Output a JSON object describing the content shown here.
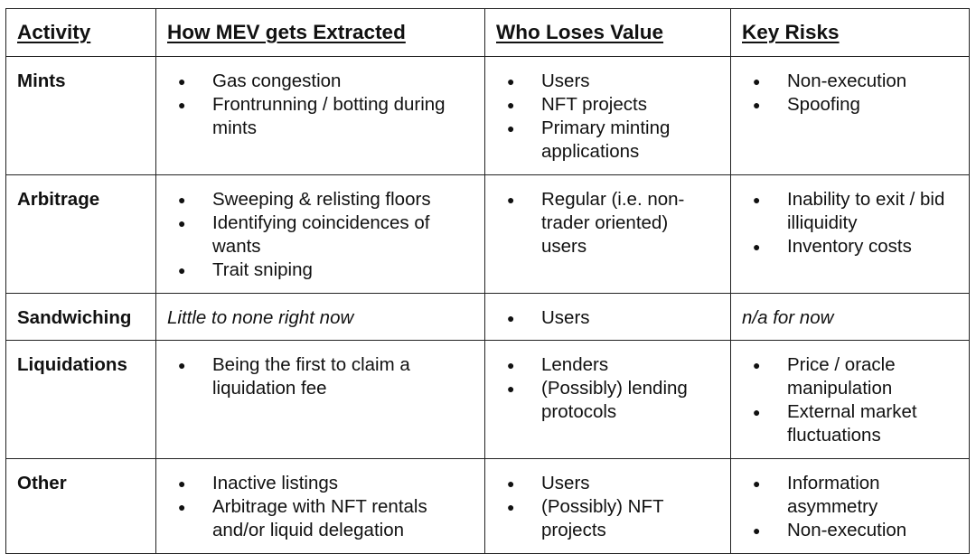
{
  "headers": [
    "Activity",
    "How MEV gets Extracted",
    "Who Loses Value",
    "Key Risks"
  ],
  "rows": [
    {
      "activity": "Mints",
      "how": [
        "Gas congestion",
        "Frontrunning / botting during mints"
      ],
      "who": [
        "Users",
        "NFT projects",
        "Primary minting applications"
      ],
      "risks": [
        "Non-execution",
        "Spoofing"
      ]
    },
    {
      "activity": "Arbitrage",
      "how": [
        "Sweeping & relisting floors",
        "Identifying coincidences of wants",
        "Trait sniping"
      ],
      "who": [
        "Regular (i.e. non-trader oriented) users"
      ],
      "risks": [
        "Inability to exit / bid illiquidity",
        "Inventory costs"
      ]
    },
    {
      "activity": "Sandwiching",
      "how_note": "Little to none right now",
      "who": [
        "Users"
      ],
      "risks_note": "n/a for now"
    },
    {
      "activity": "Liquidations",
      "how": [
        "Being the first to claim a liquidation fee"
      ],
      "who": [
        "Lenders",
        "(Possibly) lending protocols"
      ],
      "risks": [
        "Price / oracle manipulation",
        "External market fluctuations"
      ]
    },
    {
      "activity": "Other",
      "how": [
        "Inactive listings",
        "Arbitrage with NFT rentals and/or liquid delegation"
      ],
      "who": [
        "Users",
        "(Possibly) NFT projects"
      ],
      "risks": [
        "Information asymmetry",
        "Non-execution"
      ]
    }
  ],
  "bullet_glyph": "●"
}
